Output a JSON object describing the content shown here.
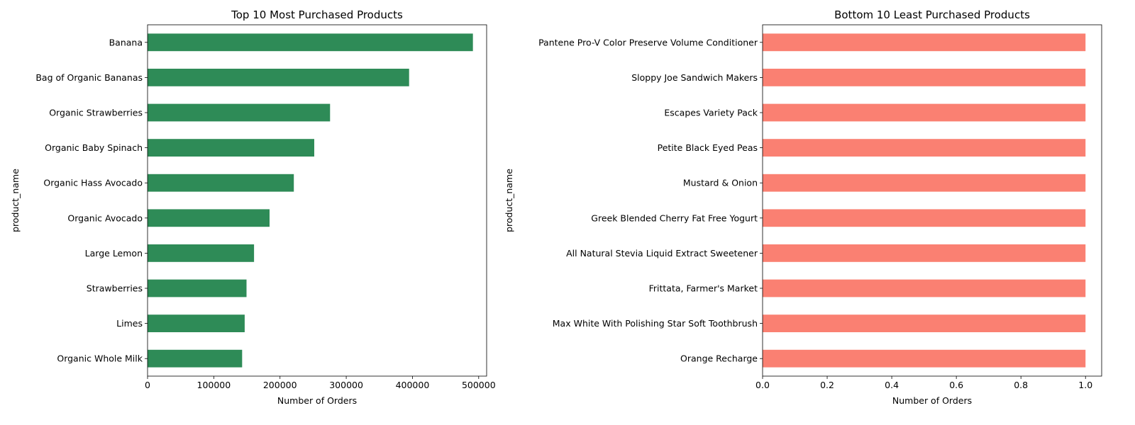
{
  "chart_data": [
    {
      "type": "bar",
      "orientation": "horizontal",
      "title": "Top 10 Most Purchased Products",
      "xlabel": "Number of Orders",
      "ylabel": "product_name",
      "categories": [
        "Banana",
        "Bag of Organic Bananas",
        "Organic Strawberries",
        "Organic Baby Spinach",
        "Organic Hass Avocado",
        "Organic Avocado",
        "Large Lemon",
        "Strawberries",
        "Limes",
        "Organic Whole Milk"
      ],
      "values": [
        491291,
        394930,
        275577,
        251705,
        220877,
        184224,
        160792,
        149445,
        146660,
        142813
      ],
      "xlim": [
        0,
        512000
      ],
      "xticks": [
        0,
        100000,
        200000,
        300000,
        400000,
        500000
      ],
      "xtick_labels": [
        "0",
        "100000",
        "200000",
        "300000",
        "400000",
        "500000"
      ],
      "color": "#2e8b57",
      "grid": false
    },
    {
      "type": "bar",
      "orientation": "horizontal",
      "title": "Bottom 10 Least Purchased Products",
      "xlabel": "Number of Orders",
      "ylabel": "product_name",
      "categories": [
        "Pantene Pro-V Color Preserve Volume Conditioner",
        "Sloppy Joe Sandwich Makers",
        "Escapes Variety Pack",
        "Petite Black Eyed Peas",
        "Mustard & Onion",
        "Greek Blended Cherry Fat Free Yogurt",
        "All Natural Stevia Liquid Extract Sweetener",
        "Frittata, Farmer's Market",
        "Max White With Polishing Star Soft Toothbrush",
        "Orange Recharge"
      ],
      "values": [
        1,
        1,
        1,
        1,
        1,
        1,
        1,
        1,
        1,
        1
      ],
      "xlim": [
        0,
        1.05
      ],
      "xticks": [
        0,
        0.2,
        0.4,
        0.6,
        0.8,
        1.0
      ],
      "xtick_labels": [
        "0.0",
        "0.2",
        "0.4",
        "0.6",
        "0.8",
        "1.0"
      ],
      "color": "#fa8072",
      "grid": false
    }
  ]
}
